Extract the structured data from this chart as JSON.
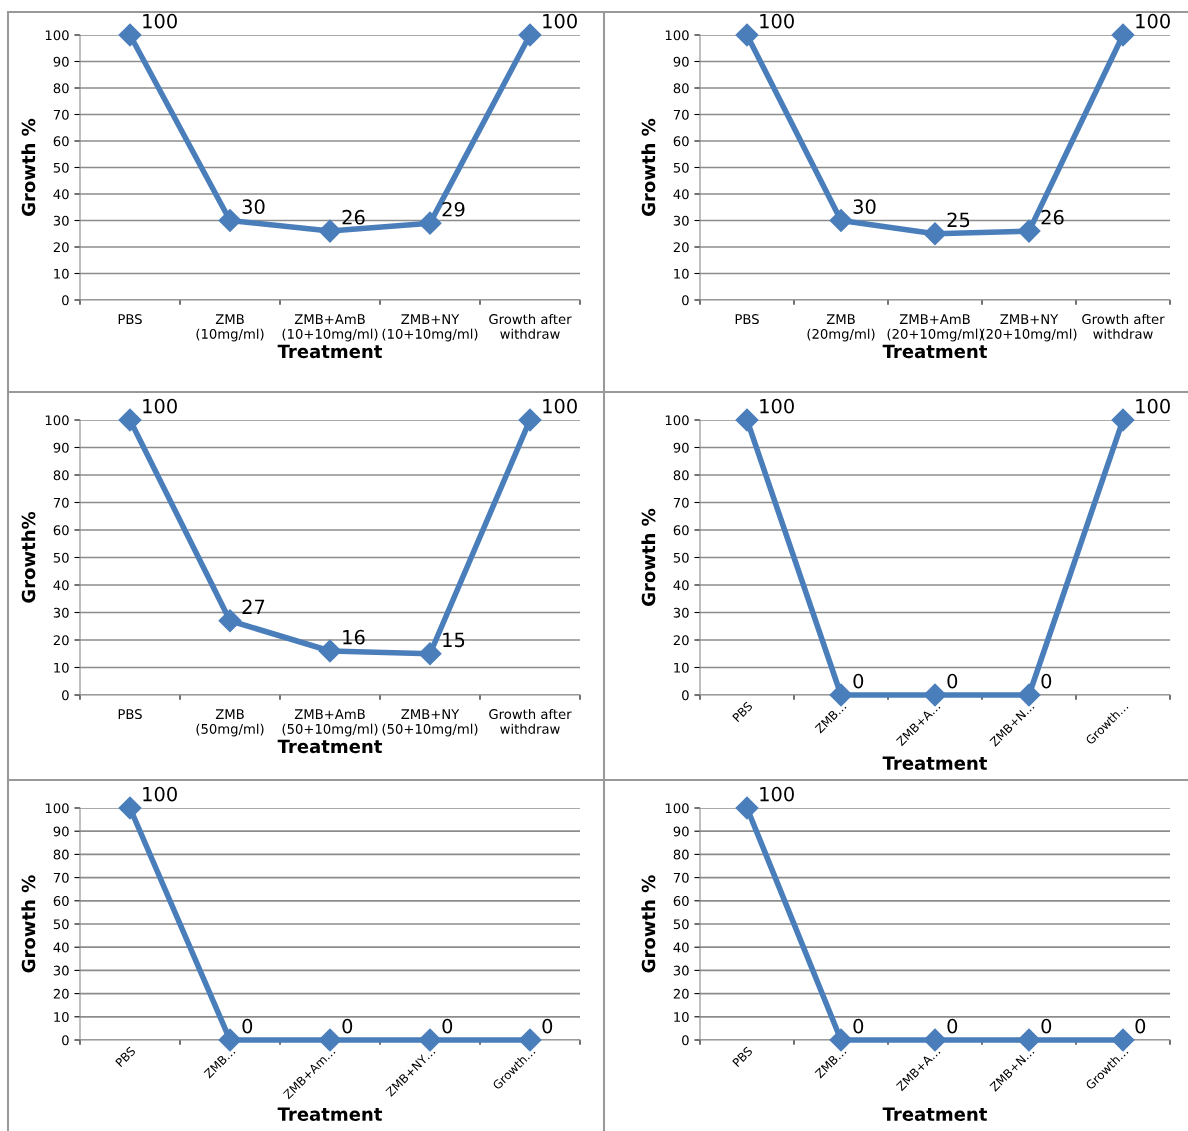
{
  "chart_data": [
    {
      "type": "line",
      "xlabel": "Treatment",
      "ylabel": "Growth %",
      "categories": [
        "PBS",
        "ZMB\n(10mg/ml)",
        "ZMB+AmB\n(10+10mg/ml)",
        "ZMB+NY\n(10+10mg/ml)",
        "Growth after\nwithdraw"
      ],
      "series": [
        {
          "color": "#4a7ebb",
          "values": [
            100,
            30,
            26,
            29,
            100
          ]
        }
      ],
      "ylim": [
        0,
        100
      ],
      "yticks": [
        0,
        10,
        20,
        30,
        40,
        50,
        60,
        70,
        80,
        90,
        100
      ],
      "grid": "y",
      "marker": "diamond",
      "data_labels": true
    },
    {
      "type": "line",
      "xlabel": "Treatment",
      "ylabel": "Growth %",
      "categories": [
        "PBS",
        "ZMB\n(20mg/ml)",
        "ZMB+AmB\n(20+10mg/ml)",
        "ZMB+NY\n(20+10mg/ml)",
        "Growth after\nwithdraw"
      ],
      "series": [
        {
          "color": "#4a7ebb",
          "values": [
            100,
            30,
            25,
            26,
            100
          ]
        }
      ],
      "ylim": [
        0,
        100
      ],
      "yticks": [
        0,
        10,
        20,
        30,
        40,
        50,
        60,
        70,
        80,
        90,
        100
      ],
      "grid": "y",
      "marker": "diamond",
      "data_labels": true
    },
    {
      "type": "line",
      "xlabel": "Treatment",
      "ylabel": "Growth%",
      "categories": [
        "PBS",
        "ZMB\n(50mg/ml)",
        "ZMB+AmB\n(50+10mg/ml)",
        "ZMB+NY\n(50+10mg/ml)",
        "Growth after\nwithdraw"
      ],
      "series": [
        {
          "color": "#4a7ebb",
          "values": [
            100,
            27,
            16,
            15,
            100
          ]
        }
      ],
      "ylim": [
        0,
        100
      ],
      "yticks": [
        0,
        10,
        20,
        30,
        40,
        50,
        60,
        70,
        80,
        90,
        100
      ],
      "grid": "y",
      "marker": "diamond",
      "data_labels": true
    },
    {
      "type": "line",
      "xlabel": "Treatment",
      "ylabel": "Growth %",
      "categories": [
        "PBS",
        "ZMB…",
        "ZMB+A…",
        "ZMB+N…",
        "Growth…"
      ],
      "series": [
        {
          "color": "#4a7ebb",
          "values": [
            100,
            0,
            0,
            0,
            100
          ]
        }
      ],
      "ylim": [
        0,
        100
      ],
      "yticks": [
        0,
        10,
        20,
        30,
        40,
        50,
        60,
        70,
        80,
        90,
        100
      ],
      "grid": "y",
      "marker": "diamond",
      "data_labels": true
    },
    {
      "type": "line",
      "xlabel": "Treatment",
      "ylabel": "Growth %",
      "categories": [
        "PBS",
        "ZMB…",
        "ZMB+Am…",
        "ZMB+NY…",
        "Growth…"
      ],
      "series": [
        {
          "color": "#4a7ebb",
          "values": [
            100,
            0,
            0,
            0,
            0
          ]
        }
      ],
      "ylim": [
        0,
        100
      ],
      "yticks": [
        0,
        10,
        20,
        30,
        40,
        50,
        60,
        70,
        80,
        90,
        100
      ],
      "grid": "y",
      "marker": "diamond",
      "data_labels": true
    },
    {
      "type": "line",
      "xlabel": "Treatment",
      "ylabel": "Growth %",
      "categories": [
        "PBS",
        "ZMB…",
        "ZMB+A…",
        "ZMB+N…",
        "Growth…"
      ],
      "series": [
        {
          "color": "#4a7ebb",
          "values": [
            100,
            0,
            0,
            0,
            0
          ]
        }
      ],
      "ylim": [
        0,
        100
      ],
      "yticks": [
        0,
        10,
        20,
        30,
        40,
        50,
        60,
        70,
        80,
        90,
        100
      ],
      "grid": "y",
      "marker": "diamond",
      "data_labels": true
    }
  ]
}
